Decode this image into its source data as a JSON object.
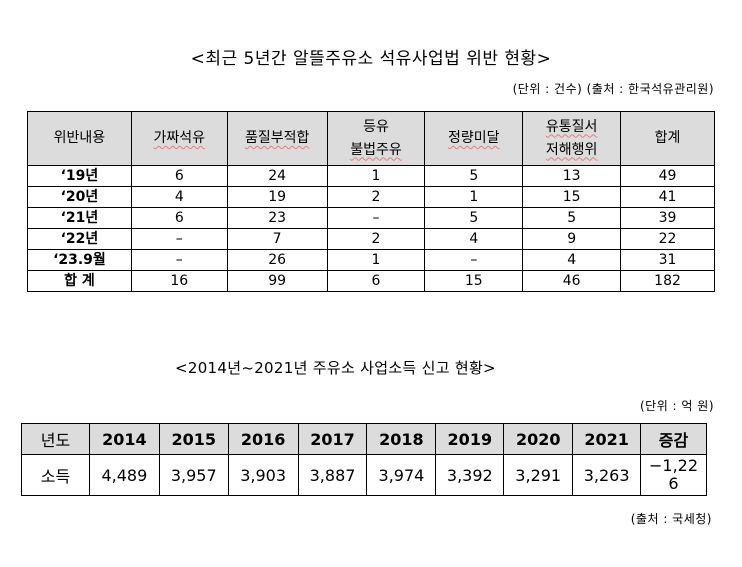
{
  "table1": {
    "title": "<최근 5년간 알뜰주유소 석유사업법 위반 현황>",
    "source": "(단위 : 건수) (출처 : 한국석유관리원)",
    "headers": {
      "h0": "위반내용",
      "h1": "가짜석유",
      "h2": "품질부적합",
      "h3a": "등유",
      "h3b": "불법주유",
      "h4": "정량미달",
      "h5a": "유통질서",
      "h5b": "저해행위",
      "h6": "합계"
    },
    "rows": [
      {
        "label": "‘19년",
        "c1": "6",
        "c2": "24",
        "c3": "1",
        "c4": "5",
        "c5": "13",
        "c6": "49"
      },
      {
        "label": "‘20년",
        "c1": "4",
        "c2": "19",
        "c3": "2",
        "c4": "1",
        "c5": "15",
        "c6": "41"
      },
      {
        "label": "‘21년",
        "c1": "6",
        "c2": "23",
        "c3": "–",
        "c4": "5",
        "c5": "5",
        "c6": "39"
      },
      {
        "label": "‘22년",
        "c1": "–",
        "c2": "7",
        "c3": "2",
        "c4": "4",
        "c5": "9",
        "c6": "22"
      },
      {
        "label": "‘23.9월",
        "c1": "–",
        "c2": "26",
        "c3": "1",
        "c4": "–",
        "c5": "4",
        "c6": "31"
      },
      {
        "label": "합 계",
        "c1": "16",
        "c2": "99",
        "c3": "6",
        "c4": "15",
        "c5": "46",
        "c6": "182"
      }
    ]
  },
  "table2": {
    "title": "<2014년~2021년 주유소 사업소득 신고 현황>",
    "unit": "(단위 : 억 원)",
    "headers": {
      "h0": "년도",
      "h1": "2014",
      "h2": "2015",
      "h3": "2016",
      "h4": "2017",
      "h5": "2018",
      "h6": "2019",
      "h7": "2020",
      "h8": "2021",
      "h9": "증감"
    },
    "row": {
      "label": "소득",
      "c1": "4,489",
      "c2": "3,957",
      "c3": "3,903",
      "c4": "3,887",
      "c5": "3,974",
      "c6": "3,392",
      "c7": "3,291",
      "c8": "3,263",
      "c9a": "−1,22",
      "c9b": "6"
    },
    "source": "(출처 : 국세청)"
  }
}
